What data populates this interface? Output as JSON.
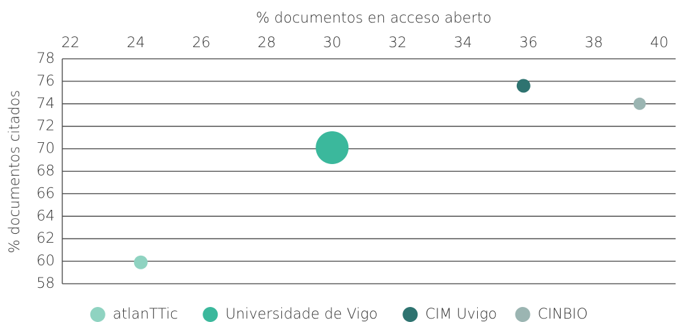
{
  "chart_data": {
    "type": "scatter",
    "xlabel": "% documentos en acceso aberto",
    "ylabel": "% documentos citados",
    "xlim": [
      21.75,
      40.5
    ],
    "xticks": [
      22,
      24,
      26,
      28,
      30,
      32,
      34,
      36,
      38,
      40
    ],
    "ylim": [
      58,
      78
    ],
    "yticks": [
      58,
      60,
      62,
      64,
      66,
      68,
      70,
      72,
      74,
      76,
      78
    ],
    "grid": true,
    "legend": "bottom",
    "series": [
      {
        "name": "atlanTTic",
        "color": "#8fd3c1",
        "x": [
          24.15
        ],
        "values": [
          59.9
        ],
        "sizes": [
          100
        ]
      },
      {
        "name": "Universidade de Vigo",
        "color": "#3bb89c",
        "x": [
          30.0
        ],
        "values": [
          70.1
        ],
        "sizes": [
          576
        ]
      },
      {
        "name": "CIM Uvigo",
        "color": "#2e7370",
        "x": [
          35.85
        ],
        "values": [
          75.6
        ],
        "sizes": [
          100
        ]
      },
      {
        "name": "CINBIO",
        "color": "#9bb5b2",
        "x": [
          39.4
        ],
        "values": [
          74.0
        ],
        "sizes": [
          81
        ]
      }
    ]
  }
}
